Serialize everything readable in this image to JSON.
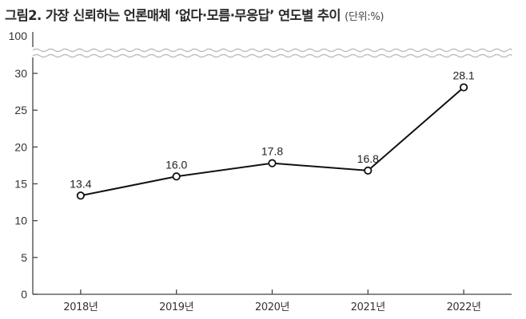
{
  "title": {
    "main": "그림2. 가장 신뢰하는 언론매체 ‘없다·모름·무응답’ 연도별 추이",
    "unit": "(단위:%)"
  },
  "chart_data": {
    "type": "line",
    "title": "그림2. 가장 신뢰하는 언론매체 ‘없다·모름·무응답’ 연도별 추이",
    "unit_label": "(단위:%)",
    "categories": [
      "2018년",
      "2019년",
      "2020년",
      "2021년",
      "2022년"
    ],
    "values": [
      13.4,
      16.0,
      17.8,
      16.8,
      28.1
    ],
    "data_labels": [
      "13.4",
      "16.0",
      "17.8",
      "16.8",
      "28.1"
    ],
    "y_ticks": [
      0,
      5,
      10,
      15,
      20,
      25,
      30
    ],
    "y_tick_labels": [
      "0",
      "5",
      "10",
      "15",
      "20",
      "25",
      "30"
    ],
    "y_break_top_label": "100",
    "ylim": [
      0,
      30
    ],
    "axis_break": true,
    "grid": false,
    "xlabel": "",
    "ylabel": "",
    "colors": {
      "line": "#111111",
      "marker_fill": "#ffffff",
      "axis": "#444444",
      "break": "#bbbbbb"
    }
  }
}
